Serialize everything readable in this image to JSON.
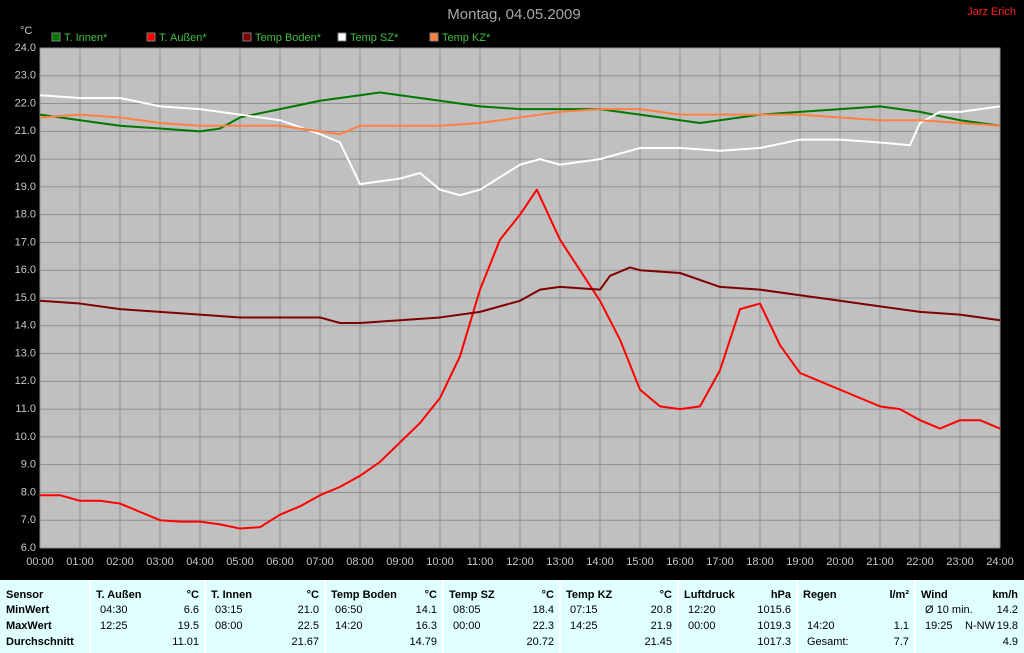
{
  "chart_data": {
    "type": "line",
    "title": "Montag, 04.05.2009",
    "author": "Jarz Erich",
    "y_label": "°C",
    "xlim": [
      0,
      24
    ],
    "ylim": [
      6,
      24
    ],
    "grid": true,
    "xticks": [
      {
        "value": 0,
        "label": "00:00"
      },
      {
        "value": 1,
        "label": "01:00"
      },
      {
        "value": 2,
        "label": "02:00"
      },
      {
        "value": 3,
        "label": "03:00"
      },
      {
        "value": 4,
        "label": "04:00"
      },
      {
        "value": 5,
        "label": "05:00"
      },
      {
        "value": 6,
        "label": "06:00"
      },
      {
        "value": 7,
        "label": "07:00"
      },
      {
        "value": 8,
        "label": "08:00"
      },
      {
        "value": 9,
        "label": "09:00"
      },
      {
        "value": 10,
        "label": "10:00"
      },
      {
        "value": 11,
        "label": "11:00"
      },
      {
        "value": 12,
        "label": "12:00"
      },
      {
        "value": 13,
        "label": "13:00"
      },
      {
        "value": 14,
        "label": "14:00"
      },
      {
        "value": 15,
        "label": "15:00"
      },
      {
        "value": 16,
        "label": "16:00"
      },
      {
        "value": 17,
        "label": "17:00"
      },
      {
        "value": 18,
        "label": "18:00"
      },
      {
        "value": 19,
        "label": "19:00"
      },
      {
        "value": 20,
        "label": "20:00"
      },
      {
        "value": 21,
        "label": "21:00"
      },
      {
        "value": 22,
        "label": "22:00"
      },
      {
        "value": 23,
        "label": "23:00"
      },
      {
        "value": 24,
        "label": "24:00"
      }
    ],
    "yticks": [
      {
        "value": 6,
        "label": "6.0"
      },
      {
        "value": 7,
        "label": "7.0"
      },
      {
        "value": 8,
        "label": "8.0"
      },
      {
        "value": 9,
        "label": "9.0"
      },
      {
        "value": 10,
        "label": "10.0"
      },
      {
        "value": 11,
        "label": "11.0"
      },
      {
        "value": 12,
        "label": "12.0"
      },
      {
        "value": 13,
        "label": "13.0"
      },
      {
        "value": 14,
        "label": "14.0"
      },
      {
        "value": 15,
        "label": "15.0"
      },
      {
        "value": 16,
        "label": "16.0"
      },
      {
        "value": 17,
        "label": "17.0"
      },
      {
        "value": 18,
        "label": "18.0"
      },
      {
        "value": 19,
        "label": "19.0"
      },
      {
        "value": 20,
        "label": "20.0"
      },
      {
        "value": 21,
        "label": "21.0"
      },
      {
        "value": 22,
        "label": "22.0"
      },
      {
        "value": 23,
        "label": "23.0"
      },
      {
        "value": 24,
        "label": "24.0"
      }
    ],
    "series": [
      {
        "name": "T. Innen*",
        "color": "#007800",
        "x": [
          0,
          1,
          2,
          3,
          4,
          4.5,
          5,
          6,
          7,
          8,
          8.5,
          9,
          10,
          11,
          12,
          13,
          14,
          15,
          16,
          16.5,
          17,
          18,
          19,
          20,
          21,
          22,
          23,
          24
        ],
        "values": [
          21.6,
          21.4,
          21.2,
          21.1,
          21.0,
          21.1,
          21.5,
          21.8,
          22.1,
          22.3,
          22.4,
          22.3,
          22.1,
          21.9,
          21.8,
          21.8,
          21.8,
          21.6,
          21.4,
          21.3,
          21.4,
          21.6,
          21.7,
          21.8,
          21.9,
          21.7,
          21.4,
          21.2
        ]
      },
      {
        "name": "T. Außen*",
        "color": "#ff0000",
        "x": [
          0,
          0.5,
          1,
          1.5,
          2,
          2.5,
          3,
          3.5,
          4,
          4.5,
          5,
          5.5,
          6,
          6.5,
          7,
          7.5,
          8,
          8.5,
          9,
          9.5,
          10,
          10.5,
          11,
          11.5,
          12,
          12.42,
          13,
          13.5,
          14,
          14.5,
          15,
          15.5,
          16,
          16.5,
          17,
          17.5,
          18,
          18.5,
          19,
          19.5,
          20,
          20.5,
          21,
          21.5,
          22,
          22.5,
          23,
          23.5,
          24
        ],
        "values": [
          7.9,
          7.9,
          7.7,
          7.7,
          7.6,
          7.3,
          7.0,
          6.95,
          6.95,
          6.85,
          6.7,
          6.75,
          7.2,
          7.5,
          7.9,
          8.2,
          8.6,
          9.1,
          9.8,
          10.5,
          11.4,
          12.9,
          15.3,
          17.1,
          18.0,
          18.9,
          17.1,
          16.0,
          14.9,
          13.5,
          11.7,
          11.1,
          11.0,
          11.1,
          12.4,
          14.6,
          14.8,
          13.3,
          12.3,
          12.0,
          11.7,
          11.4,
          11.1,
          11.0,
          10.6,
          10.3,
          10.6,
          10.6,
          10.3
        ]
      },
      {
        "name": "Temp Boden*",
        "color": "#800000",
        "x": [
          0,
          1,
          2,
          3,
          4,
          5,
          6,
          7,
          7.5,
          8,
          9,
          10,
          11,
          12,
          12.5,
          13,
          14,
          14.25,
          14.75,
          15,
          16,
          17,
          18,
          19,
          20,
          21,
          22,
          23,
          24
        ],
        "values": [
          14.9,
          14.8,
          14.6,
          14.5,
          14.4,
          14.3,
          14.3,
          14.3,
          14.1,
          14.1,
          14.2,
          14.3,
          14.5,
          14.9,
          15.3,
          15.4,
          15.3,
          15.8,
          16.1,
          16.0,
          15.9,
          15.4,
          15.3,
          15.1,
          14.9,
          14.7,
          14.5,
          14.4,
          14.2
        ]
      },
      {
        "name": "Temp SZ*",
        "color": "#ffffff",
        "x": [
          0,
          1,
          2,
          3,
          4,
          5,
          6,
          7,
          7.5,
          8,
          9,
          9.5,
          10,
          10.5,
          11,
          12,
          12.5,
          13,
          14,
          15,
          16,
          17,
          18,
          19,
          20,
          21,
          21.75,
          22,
          22.5,
          23,
          24
        ],
        "values": [
          22.3,
          22.2,
          22.2,
          21.9,
          21.8,
          21.6,
          21.4,
          20.9,
          20.6,
          19.1,
          19.3,
          19.5,
          18.9,
          18.7,
          18.9,
          19.8,
          20.0,
          19.8,
          20.0,
          20.4,
          20.4,
          20.3,
          20.4,
          20.7,
          20.7,
          20.6,
          20.5,
          21.3,
          21.7,
          21.7,
          21.9
        ]
      },
      {
        "name": "Temp KZ*",
        "color": "#ff8040",
        "x": [
          0,
          1,
          2,
          3,
          4,
          5,
          6,
          7,
          7.5,
          8,
          9,
          10,
          11,
          12,
          13,
          14,
          15,
          16,
          17,
          18,
          19,
          20,
          21,
          22,
          23,
          24
        ],
        "values": [
          21.5,
          21.6,
          21.5,
          21.3,
          21.2,
          21.2,
          21.2,
          21.0,
          20.9,
          21.2,
          21.2,
          21.2,
          21.3,
          21.5,
          21.7,
          21.8,
          21.8,
          21.6,
          21.6,
          21.6,
          21.6,
          21.5,
          21.4,
          21.4,
          21.3,
          21.2
        ]
      }
    ]
  },
  "table": {
    "labels": {
      "header": "Sensor",
      "rows": [
        "MinWert",
        "MaxWert",
        "Durchschnitt"
      ]
    },
    "sections": [
      {
        "header": "T. Außen",
        "unit": "°C",
        "rows": [
          [
            "04:30",
            "6.6"
          ],
          [
            "12:25",
            "19.5"
          ],
          [
            "11.01"
          ]
        ]
      },
      {
        "header": "T. Innen",
        "unit": "°C",
        "rows": [
          [
            "03:15",
            "21.0"
          ],
          [
            "08:00",
            "22.5"
          ],
          [
            "21.67"
          ]
        ]
      },
      {
        "header": "Temp Boden",
        "unit": "°C",
        "rows": [
          [
            "06:50",
            "14.1"
          ],
          [
            "14:20",
            "16.3"
          ],
          [
            "14.79"
          ]
        ]
      },
      {
        "header": "Temp SZ",
        "unit": "°C",
        "rows": [
          [
            "08:05",
            "18.4"
          ],
          [
            "00:00",
            "22.3"
          ],
          [
            "20.72"
          ]
        ]
      },
      {
        "header": "Temp KZ",
        "unit": "°C",
        "rows": [
          [
            "07:15",
            "20.8"
          ],
          [
            "14:25",
            "21.9"
          ],
          [
            "21.45"
          ]
        ]
      },
      {
        "header": "Luftdruck",
        "unit": "hPa",
        "rows": [
          [
            "12:20",
            "1015.6"
          ],
          [
            "00:00",
            "1019.3"
          ],
          [
            "1017.3"
          ]
        ]
      },
      {
        "header": "Regen",
        "unit": "l/m²",
        "rows": [
          null,
          [
            "14:20",
            "1.1"
          ],
          [
            "Gesamt:",
            "7.7"
          ]
        ]
      },
      {
        "header": "Wind",
        "unit": "km/h",
        "rows": [
          [
            "Ø 10 min.",
            "14.2"
          ],
          [
            "19:25",
            "N-NW",
            "19.8"
          ],
          [
            "4.9"
          ]
        ]
      }
    ]
  }
}
